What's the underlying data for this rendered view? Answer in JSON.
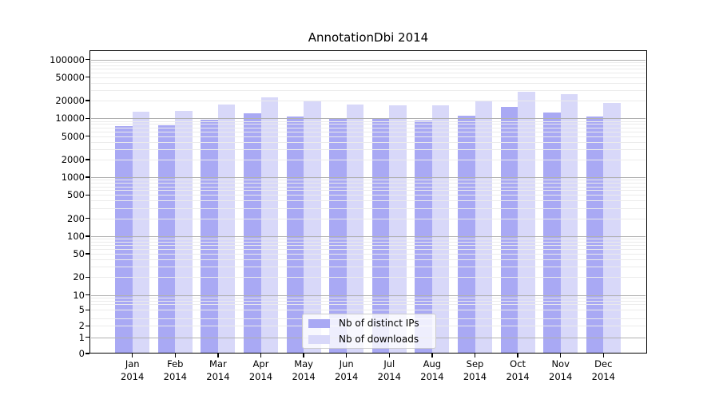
{
  "chart_data": {
    "type": "bar",
    "title": "AnnotationDbi 2014",
    "x_categories": [
      "Jan 2014",
      "Feb 2014",
      "Mar 2014",
      "Apr 2014",
      "May 2014",
      "Jun 2014",
      "Jul 2014",
      "Aug 2014",
      "Sep 2014",
      "Oct 2014",
      "Nov 2014",
      "Dec 2014"
    ],
    "series": [
      {
        "name": "Nb of distinct IPs",
        "color": "#a9a9f4",
        "values": [
          7400,
          7550,
          9350,
          12100,
          10900,
          10100,
          9700,
          9250,
          11000,
          15500,
          12700,
          10800
        ]
      },
      {
        "name": "Nb of downloads",
        "color": "#d8d8f9",
        "values": [
          12800,
          13200,
          17400,
          22600,
          20100,
          17200,
          16700,
          16800,
          19600,
          28300,
          26000,
          18300
        ]
      }
    ],
    "y_scale": "log-with-zero",
    "y_tick_labels": [
      "100000",
      "50000",
      "20000",
      "10000",
      "5000",
      "2000",
      "1000",
      "500",
      "200",
      "100",
      "50",
      "20",
      "10",
      "5",
      "2",
      "1",
      "0"
    ],
    "grid": "horizontal-major-and-log-minor",
    "legend_position": "lower-center-inside"
  },
  "colors": {
    "bar_ips": "#a9a9f4",
    "bar_downloads": "#d8d8f9",
    "grid_minor": "#ebebeb",
    "grid_major": "#b0b0b0",
    "spine": "#000000",
    "background": "#ffffff"
  }
}
